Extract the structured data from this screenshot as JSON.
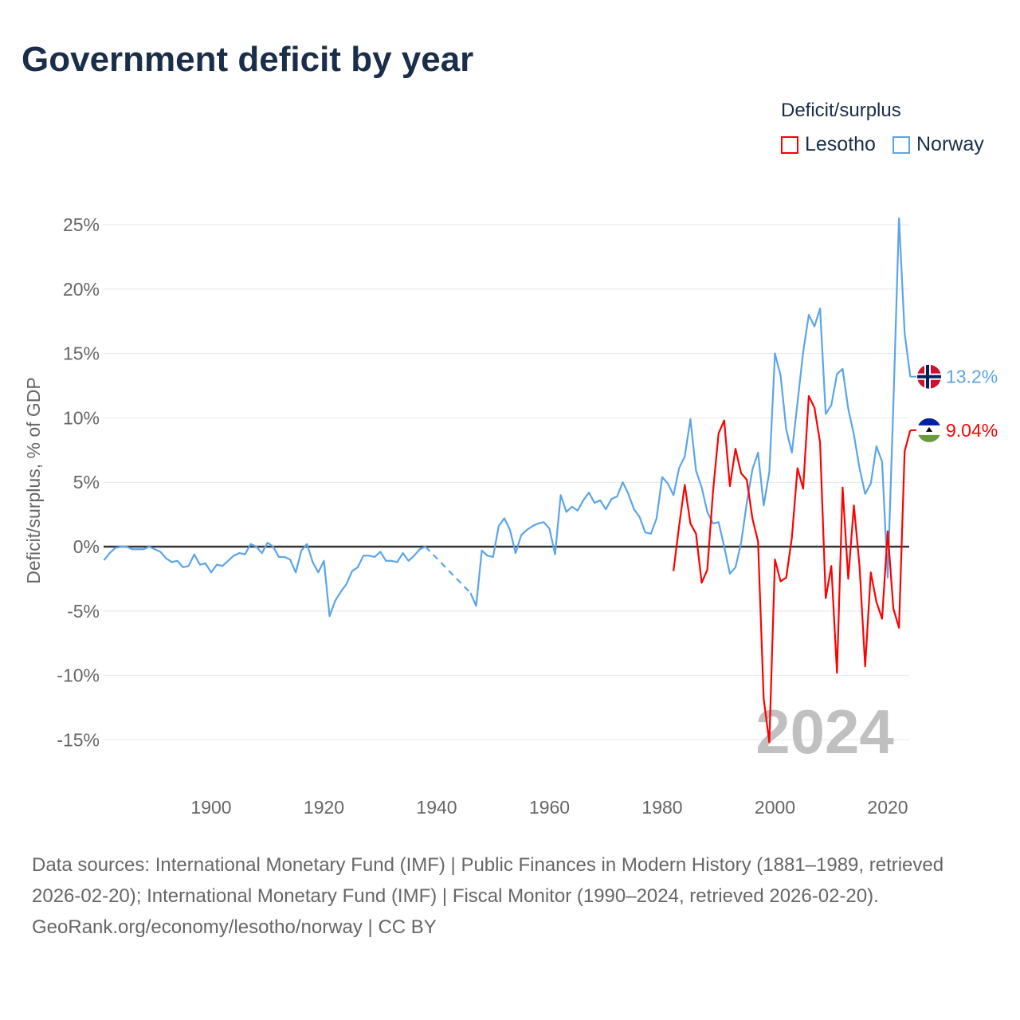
{
  "title": "Government deficit by year",
  "legend": {
    "title": "Deficit/surplus",
    "items": [
      {
        "name": "Lesotho",
        "color": "#ff0000"
      },
      {
        "name": "Norway",
        "color": "#5ba4ea"
      }
    ]
  },
  "footer": {
    "sources": "Data sources: International Monetary Fund (IMF) | Public Finances in Modern History (1881–1989, retrieved 2026-02-20); International Monetary Fund (IMF) | Fiscal Monitor (1990–2024, retrieved 2026-02-20).",
    "credit": "GeoRank.org/economy/lesotho/norway | CC BY"
  },
  "chart_data": {
    "type": "line",
    "title": "Government deficit by year",
    "xlabel": "",
    "ylabel": "Deficit/surplus, % of GDP",
    "xlim": [
      1881,
      2024
    ],
    "ylim": [
      -17,
      27
    ],
    "yticks": [
      25,
      20,
      15,
      10,
      5,
      0,
      -5,
      -10,
      -15
    ],
    "ytick_labels": [
      "25%",
      "20%",
      "15%",
      "10%",
      "5%",
      "0%",
      "-5%",
      "-10%",
      "-15%"
    ],
    "xticks": [
      1900,
      1920,
      1940,
      1960,
      1980,
      2000,
      2020
    ],
    "xtick_labels": [
      "1900",
      "1920",
      "1940",
      "1960",
      "1980",
      "2000",
      "2020"
    ],
    "grid": true,
    "legend_position": "top-right",
    "year_label": "2024",
    "series": [
      {
        "name": "Norway",
        "color": "#5ba4ea",
        "end_label": "13.2%",
        "flag": "norway-flag",
        "start_year": 1881,
        "values": [
          -1.05,
          -0.5,
          -0.1,
          0,
          0,
          -0.2,
          -0.2,
          -0.2,
          0,
          -0.2,
          -0.4,
          -0.9,
          -1.2,
          -1.1,
          -1.6,
          -1.5,
          -0.6,
          -1.4,
          -1.3,
          -2.0,
          -1.4,
          -1.5,
          -1.1,
          -0.7,
          -0.5,
          -0.6,
          0.2,
          0,
          -0.5,
          0.3,
          0,
          -0.8,
          -0.8,
          -1.0,
          -2.0,
          -0.3,
          0.2,
          -1.2,
          -2.0,
          -1.1,
          -5.4,
          -4.2,
          -3.5,
          -2.9,
          -1.9,
          -1.6,
          -0.7,
          -0.7,
          -0.8,
          -0.4,
          -1.1,
          -1.1,
          -1.2,
          -0.5,
          -1.1,
          -0.7,
          -0.2,
          0,
          null,
          null,
          null,
          null,
          null,
          null,
          null,
          -3.6,
          -4.6,
          -0.3,
          -0.7,
          -0.8,
          1.6,
          2.2,
          1.3,
          -0.5,
          0.9,
          1.3,
          1.6,
          1.8,
          1.9,
          1.4,
          -0.6,
          4.0,
          2.7,
          3.1,
          2.8,
          3.6,
          4.2,
          3.4,
          3.6,
          2.9,
          3.7,
          3.9,
          5.0,
          4.1,
          2.9,
          2.3,
          1.1,
          1.0,
          2.2,
          5.4,
          4.9,
          4.0,
          6.1,
          7.0,
          9.9,
          5.9,
          4.6,
          2.7,
          1.8,
          1.9,
          0,
          -2.1,
          -1.6,
          0.3,
          3.4,
          6.0,
          7.3,
          3.2,
          5.8,
          15.0,
          13.3,
          9.1,
          7.3,
          11.2,
          15.1,
          18.0,
          17.1,
          18.5,
          10.3,
          11.0,
          13.4,
          13.8,
          10.7,
          8.7,
          6.1,
          4.1,
          4.9,
          7.8,
          6.6,
          -2.4,
          11.0,
          25.5,
          16.6,
          13.2
        ]
      },
      {
        "name": "Lesotho",
        "color": "#ff0000",
        "end_label": "9.04%",
        "flag": "lesotho-flag",
        "start_year": 1982,
        "values": [
          -1.9,
          1.6,
          4.8,
          1.8,
          1.0,
          -2.8,
          -1.8,
          4.2,
          8.8,
          9.8,
          4.7,
          7.6,
          5.7,
          5.2,
          2.2,
          0.4,
          -11.8,
          -15.2,
          -1.0,
          -2.7,
          -2.4,
          0.7,
          6.1,
          4.5,
          11.7,
          10.8,
          8.1,
          -4.0,
          -1.5,
          -9.8,
          4.6,
          -2.5,
          3.2,
          -1.5,
          -9.3,
          -2.0,
          -4.3,
          -5.6,
          1.2,
          -4.8,
          -6.3,
          7.4,
          9.04
        ]
      }
    ]
  }
}
